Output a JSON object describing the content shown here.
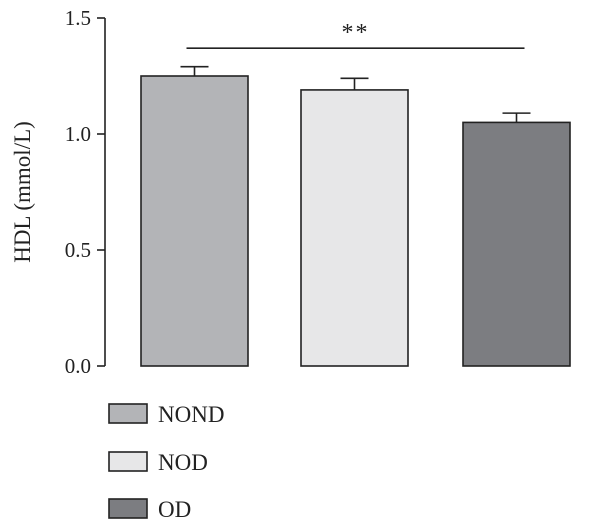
{
  "chart_data": {
    "type": "bar",
    "categories": [
      "NOND",
      "NOD",
      "OD"
    ],
    "values": [
      1.25,
      1.19,
      1.05
    ],
    "errors": [
      0.04,
      0.05,
      0.04
    ],
    "colors": [
      "#b3b4b7",
      "#e7e7e8",
      "#7c7d81"
    ],
    "ylabel": "HDL (mmol/L)",
    "ylim": [
      0,
      1.5
    ],
    "yticks": [
      0.0,
      0.5,
      1.0,
      1.5
    ],
    "ytick_labels": [
      "0.0",
      "0.5",
      "1.0",
      "1.5"
    ],
    "grid": false,
    "legend": {
      "placement": "bottom-left",
      "entries": [
        "NOND",
        "NOD",
        "OD"
      ]
    },
    "significance": {
      "from": "NOND",
      "to": "OD",
      "label": "**",
      "level": 1.37
    }
  }
}
